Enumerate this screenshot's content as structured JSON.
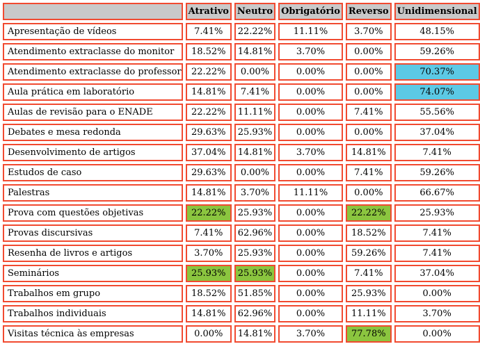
{
  "colors": {
    "border_red": "#f14a30",
    "header_bg": "#c9c9c9",
    "highlight_green": "#8bc53f",
    "highlight_blue": "#5cc9e5"
  },
  "table": {
    "columns": [
      "",
      "Atrativo",
      "Neutro",
      "Obrigatório",
      "Reverso",
      "Unidimensional"
    ],
    "rows": [
      {
        "label": "Apresentação de vídeos",
        "values": [
          "7.41%",
          "22.22%",
          "11.11%",
          "3.70%",
          "48.15%"
        ],
        "highlights": [
          null,
          null,
          null,
          null,
          null
        ]
      },
      {
        "label": "Atendimento extraclasse do monitor",
        "values": [
          "18.52%",
          "14.81%",
          "3.70%",
          "0.00%",
          "59.26%"
        ],
        "highlights": [
          null,
          null,
          null,
          null,
          null
        ]
      },
      {
        "label": "Atendimento extraclasse do professor",
        "values": [
          "22.22%",
          "0.00%",
          "0.00%",
          "0.00%",
          "70.37%"
        ],
        "highlights": [
          null,
          null,
          null,
          null,
          "blue"
        ]
      },
      {
        "label": "Aula prática em laboratório",
        "values": [
          "14.81%",
          "7.41%",
          "0.00%",
          "0.00%",
          "74.07%"
        ],
        "highlights": [
          null,
          null,
          null,
          null,
          "blue"
        ]
      },
      {
        "label": "Aulas de revisão para o ENADE",
        "values": [
          "22.22%",
          "11.11%",
          "0.00%",
          "7.41%",
          "55.56%"
        ],
        "highlights": [
          null,
          null,
          null,
          null,
          null
        ]
      },
      {
        "label": "Debates e mesa redonda",
        "values": [
          "29.63%",
          "25.93%",
          "0.00%",
          "0.00%",
          "37.04%"
        ],
        "highlights": [
          null,
          null,
          null,
          null,
          null
        ]
      },
      {
        "label": "Desenvolvimento de artigos",
        "values": [
          "37.04%",
          "14.81%",
          "3.70%",
          "14.81%",
          "7.41%"
        ],
        "highlights": [
          null,
          null,
          null,
          null,
          null
        ]
      },
      {
        "label": "Estudos de caso",
        "values": [
          "29.63%",
          "0.00%",
          "0.00%",
          "7.41%",
          "59.26%"
        ],
        "highlights": [
          null,
          null,
          null,
          null,
          null
        ]
      },
      {
        "label": "Palestras",
        "values": [
          "14.81%",
          "3.70%",
          "11.11%",
          "0.00%",
          "66.67%"
        ],
        "highlights": [
          null,
          null,
          null,
          null,
          null
        ]
      },
      {
        "label": "Prova com questões objetivas",
        "values": [
          "22.22%",
          "25.93%",
          "0.00%",
          "22.22%",
          "25.93%"
        ],
        "highlights": [
          "green",
          null,
          null,
          "green",
          null
        ]
      },
      {
        "label": "Provas discursivas",
        "values": [
          "7.41%",
          "62.96%",
          "0.00%",
          "18.52%",
          "7.41%"
        ],
        "highlights": [
          null,
          null,
          null,
          null,
          null
        ]
      },
      {
        "label": "Resenha de livros e artigos",
        "values": [
          "3.70%",
          "25.93%",
          "0.00%",
          "59.26%",
          "7.41%"
        ],
        "highlights": [
          null,
          null,
          null,
          null,
          null
        ]
      },
      {
        "label": "Seminários",
        "values": [
          "25.93%",
          "25.93%",
          "0.00%",
          "7.41%",
          "37.04%"
        ],
        "highlights": [
          "green",
          "green",
          null,
          null,
          null
        ]
      },
      {
        "label": "Trabalhos em grupo",
        "values": [
          "18.52%",
          "51.85%",
          "0.00%",
          "25.93%",
          "0.00%"
        ],
        "highlights": [
          null,
          null,
          null,
          null,
          null
        ]
      },
      {
        "label": "Trabalhos individuais",
        "values": [
          "14.81%",
          "62.96%",
          "0.00%",
          "11.11%",
          "3.70%"
        ],
        "highlights": [
          null,
          null,
          null,
          null,
          null
        ]
      },
      {
        "label": "Visitas técnica às empresas",
        "values": [
          "0.00%",
          "14.81%",
          "3.70%",
          "77.78%",
          "0.00%"
        ],
        "highlights": [
          null,
          null,
          null,
          "green",
          null
        ]
      }
    ]
  }
}
